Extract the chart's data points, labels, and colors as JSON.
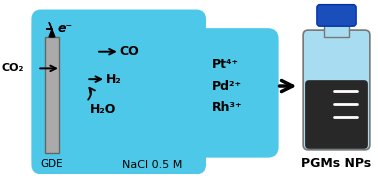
{
  "cyan": "#4DC8E8",
  "gray_light": "#AAAAAA",
  "gray_dark": "#666666",
  "blue_cap": "#1A4FBB",
  "bottle_body": "#A8DCF0",
  "bottle_dark": "#282828",
  "white": "#FFFFFF",
  "black": "#000000",
  "fig_w": 3.78,
  "fig_h": 1.76,
  "dpi": 100,
  "nacl_label": "NaCl 0.5 M",
  "gde_label": "GDE",
  "pgms_label": "PGMs NPs",
  "co2_label": "CO₂",
  "co_label": "CO",
  "h2_label": "H₂",
  "h2o_label": "H₂O",
  "pt_label": "Pt⁴⁺",
  "pd_label": "Pd²⁺",
  "rh_label": "Rh³⁺",
  "eminus_label": "e⁻"
}
